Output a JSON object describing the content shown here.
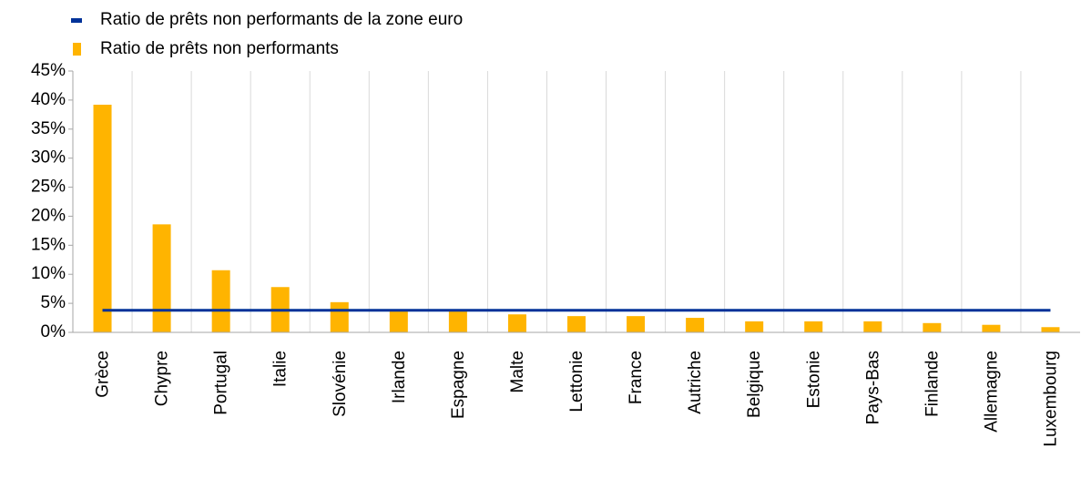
{
  "chart_data": {
    "type": "bar",
    "categories": [
      "Grèce",
      "Chypre",
      "Portugal",
      "Italie",
      "Slovénie",
      "Irlande",
      "Espagne",
      "Malte",
      "Lettonie",
      "France",
      "Autriche",
      "Belgique",
      "Estonie",
      "Pays-Bas",
      "Finlande",
      "Allemagne",
      "Luxembourg"
    ],
    "series": [
      {
        "name": "Ratio de prêts non performants de la zone euro",
        "type": "line",
        "color": "#003299",
        "values": [
          3.8,
          3.8,
          3.8,
          3.8,
          3.8,
          3.8,
          3.8,
          3.8,
          3.8,
          3.8,
          3.8,
          3.8,
          3.8,
          3.8,
          3.8,
          3.8,
          3.8
        ]
      },
      {
        "name": "Ratio de prêts non performants",
        "type": "bar",
        "color": "#ffb400",
        "values": [
          39.2,
          18.6,
          10.7,
          7.8,
          5.2,
          3.6,
          3.6,
          3.1,
          2.8,
          2.8,
          2.5,
          1.9,
          1.9,
          1.9,
          1.6,
          1.3,
          0.9
        ]
      }
    ],
    "ylim": [
      0,
      45
    ],
    "yticks": [
      {
        "value": 0,
        "label": "0%"
      },
      {
        "value": 5,
        "label": "5%"
      },
      {
        "value": 10,
        "label": "10%"
      },
      {
        "value": 15,
        "label": "15%"
      },
      {
        "value": 20,
        "label": "20%"
      },
      {
        "value": 25,
        "label": "25%"
      },
      {
        "value": 30,
        "label": "30%"
      },
      {
        "value": 35,
        "label": "35%"
      },
      {
        "value": 40,
        "label": "40%"
      },
      {
        "value": 45,
        "label": "45%"
      }
    ],
    "legend": "top-left"
  }
}
